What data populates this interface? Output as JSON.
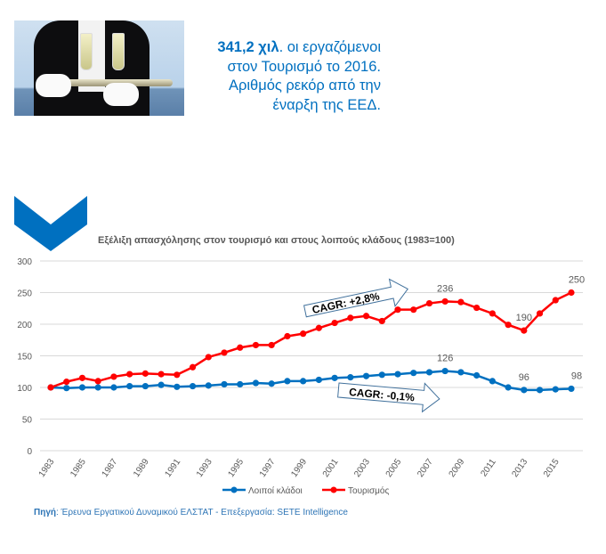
{
  "headline": {
    "bold": "341,2 χιλ",
    "rest": ". οι εργαζόμενοι στον Τουρισμό το 2016. Αριθμός ρεκόρ από την έναρξη της ΕΕΔ."
  },
  "colors": {
    "accent": "#0070c0",
    "tourism": "#ff0000",
    "other": "#0070c0"
  },
  "source": {
    "label": "Πηγή",
    "text": ": Έρευνα Εργατικού Δυναμικού ΕΛΣΤΑΤ - Επεξεργασία: SETE Intelligence"
  },
  "chart_data": {
    "type": "line",
    "title": "Εξέλιξη απασχόλησης στον τουρισμό και στους λοιπούς κλάδους (1983=100)",
    "ylim": [
      0,
      300
    ],
    "yticks": [
      "0",
      "50",
      "100",
      "150",
      "200",
      "250",
      "300"
    ],
    "x": [
      1983,
      1984,
      1985,
      1986,
      1987,
      1988,
      1989,
      1990,
      1991,
      1992,
      1993,
      1994,
      1995,
      1996,
      1997,
      1998,
      1999,
      2000,
      2001,
      2002,
      2003,
      2004,
      2005,
      2006,
      2007,
      2008,
      2009,
      2010,
      2011,
      2012,
      2013,
      2014,
      2015,
      2016
    ],
    "xticks": [
      "1983",
      "1985",
      "1987",
      "1989",
      "1991",
      "1993",
      "1995",
      "1997",
      "1999",
      "2001",
      "2003",
      "2005",
      "2007",
      "2009",
      "2011",
      "2013",
      "2015"
    ],
    "grid": true,
    "legend_position": "bottom",
    "series": [
      {
        "name": "Λοιποί κλάδοι",
        "color": "#0070c0",
        "values": [
          100,
          99,
          100,
          100,
          100,
          102,
          102,
          104,
          101,
          102,
          103,
          105,
          105,
          107,
          106,
          110,
          110,
          112,
          115,
          116,
          118,
          120,
          121,
          123,
          124,
          126,
          124,
          119,
          110,
          100,
          96,
          96,
          97,
          98
        ]
      },
      {
        "name": "Τουρισμός",
        "color": "#ff0000",
        "values": [
          100,
          109,
          115,
          110,
          117,
          121,
          122,
          121,
          120,
          132,
          148,
          155,
          163,
          167,
          167,
          181,
          185,
          194,
          202,
          210,
          213,
          205,
          223,
          223,
          233,
          236,
          235,
          226,
          217,
          199,
          190,
          217,
          238,
          250
        ]
      }
    ],
    "data_labels": [
      {
        "series": 1,
        "x": 2008,
        "text": "236"
      },
      {
        "series": 1,
        "x": 2013,
        "text": "190"
      },
      {
        "series": 1,
        "x": 2016,
        "text": "250"
      },
      {
        "series": 0,
        "x": 2008,
        "text": "126"
      },
      {
        "series": 0,
        "x": 2013,
        "text": "96"
      },
      {
        "series": 0,
        "x": 2016,
        "text": "98"
      }
    ],
    "annotations": [
      "CAGR: +2,8%",
      "CAGR: -0,1%"
    ]
  }
}
